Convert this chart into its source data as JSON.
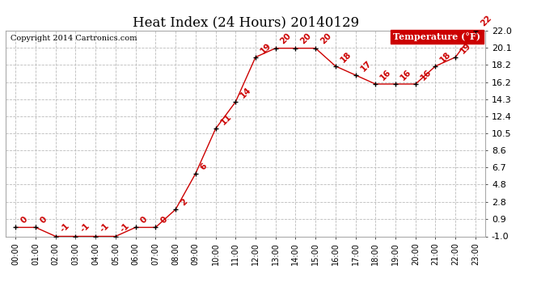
{
  "title": "Heat Index (24 Hours) 20140129",
  "copyright": "Copyright 2014 Cartronics.com",
  "legend_label": "Temperature (°F)",
  "x_labels": [
    "00:00",
    "01:00",
    "02:00",
    "03:00",
    "04:00",
    "05:00",
    "06:00",
    "07:00",
    "08:00",
    "09:00",
    "10:00",
    "11:00",
    "12:00",
    "13:00",
    "14:00",
    "15:00",
    "16:00",
    "17:00",
    "18:00",
    "19:00",
    "20:00",
    "21:00",
    "22:00",
    "23:00"
  ],
  "x_values": [
    0,
    1,
    2,
    3,
    4,
    5,
    6,
    7,
    8,
    9,
    10,
    11,
    12,
    13,
    14,
    15,
    16,
    17,
    18,
    19,
    20,
    21,
    22,
    23
  ],
  "y_values": [
    0,
    0,
    -1,
    -1,
    -1,
    -1,
    0,
    0,
    2,
    6,
    11,
    14,
    19,
    20,
    20,
    20,
    18,
    17,
    16,
    16,
    16,
    18,
    19,
    22
  ],
  "y_labels_annotate": [
    "0",
    "0",
    "-1",
    "-1",
    "-1",
    "-1",
    "0",
    "0",
    "2",
    "6",
    "11",
    "14",
    "19",
    "20",
    "20",
    "20",
    "18",
    "17",
    "16",
    "16",
    "16",
    "18",
    "19",
    "22"
  ],
  "ylim": [
    -1.0,
    22.0
  ],
  "yticks": [
    -1.0,
    0.9,
    2.8,
    4.8,
    6.7,
    8.6,
    10.5,
    12.4,
    14.3,
    16.2,
    18.2,
    20.1,
    22.0
  ],
  "line_color": "#cc0000",
  "marker_color": "#000000",
  "legend_bg": "#cc0000",
  "legend_text_color": "#ffffff",
  "bg_color": "#ffffff",
  "grid_color": "#bbbbbb",
  "title_fontsize": 12,
  "annotation_fontsize": 7.5,
  "copyright_fontsize": 7,
  "ytick_fontsize": 8,
  "xtick_fontsize": 7
}
